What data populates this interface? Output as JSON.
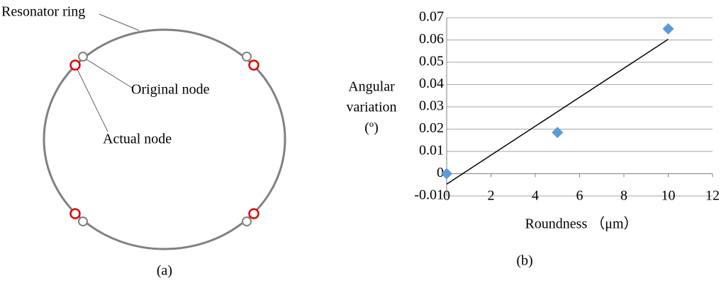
{
  "diagram": {
    "labels": [
      "Resonator ring",
      "Original node",
      "Actual node"
    ],
    "caption": "(a)"
  },
  "chart_data": {
    "type": "scatter",
    "caption": "(b)",
    "xlabel": "Roundness （μm）",
    "ylabel": [
      "Angular",
      "variation",
      "(º)"
    ],
    "x": [
      0,
      5,
      10
    ],
    "values": [
      0,
      0.0185,
      0.065
    ],
    "color": "#5b9bd5",
    "trendline": {
      "x": [
        0,
        10
      ],
      "values": [
        -0.0047,
        0.0603
      ],
      "color": "#000000"
    },
    "xlim": [
      0,
      12
    ],
    "xticks": [
      0,
      2,
      4,
      6,
      8,
      10,
      12
    ],
    "ylim": [
      -0.01,
      0.07
    ],
    "yticks": [
      -0.01,
      0,
      0.01,
      0.02,
      0.03,
      0.04,
      0.05,
      0.06,
      0.07
    ],
    "grid": true
  }
}
